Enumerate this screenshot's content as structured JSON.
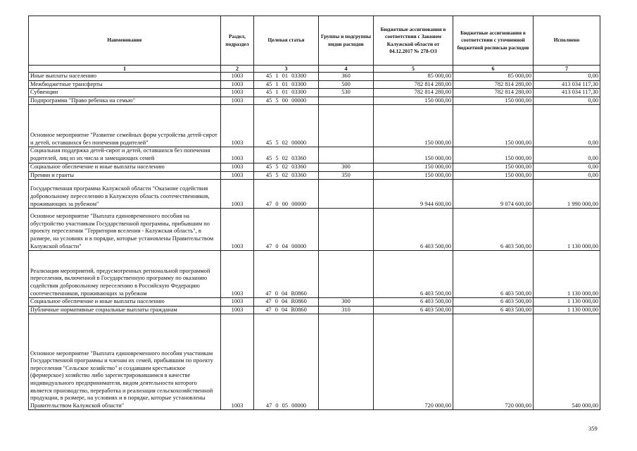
{
  "header": {
    "columns": [
      "Наименование",
      "Раздел, подраздел",
      "Целевая статья",
      "Группы и подгруппы видов расходов",
      "Бюджетные ассигнования в соответствии с Законом Калужской области от 04.12.2017 № 278-ОЗ",
      "Бюджетные ассигнования в соответствии с уточненной бюджетной росписью расходов",
      "Исполнено"
    ],
    "numbers": [
      "1",
      "2",
      "3",
      "4",
      "5",
      "6",
      "7"
    ]
  },
  "rows": [
    {
      "name": "Иные выплаты населению",
      "razdel": "1003",
      "target": "45 1 01 03300",
      "group": "360",
      "law": "85 000,00",
      "refined": "85 000,00",
      "done": "0,00"
    },
    {
      "name": "Межбюджетные трансферты",
      "razdel": "1003",
      "target": "45 1 01 03300",
      "group": "500",
      "law": "782 814 280,00",
      "refined": "782 814 280,00",
      "done": "413 034 117,30"
    },
    {
      "name": "Субвенции",
      "razdel": "1003",
      "target": "45 1 01 03300",
      "group": "530",
      "law": "782 814 280,00",
      "refined": "782 814 280,00",
      "done": "413 034 117,30"
    },
    {
      "name": "Подпрограмма \"Право ребенка на семью\"",
      "razdel": "1003",
      "target": "45 5 00 00000",
      "group": "",
      "law": "150 000,00",
      "refined": "150 000,00",
      "done": "0,00"
    },
    {
      "name": "Основное мероприятие \"Развитие семейных форм устройства детей-сирот и детей, оставшихся без попечения родителей\"",
      "razdel": "1003",
      "target": "45 5 02 00000",
      "group": "",
      "law": "150 000,00",
      "refined": "150 000,00",
      "done": "0,00"
    },
    {
      "name": "Социальная поддержка детей-сирот и детей, оставшихся без попечения родителей, лиц из их числа и замещающих семей",
      "razdel": "1003",
      "target": "45 5 02 03360",
      "group": "",
      "law": "150 000,00",
      "refined": "150 000,00",
      "done": "0,00"
    },
    {
      "name": "Социальное обеспечение и иные выплаты населению",
      "razdel": "1003",
      "target": "45 5 02 03360",
      "group": "300",
      "law": "150 000,00",
      "refined": "150 000,00",
      "done": "0,00"
    },
    {
      "name": "Премии и гранты",
      "razdel": "1003",
      "target": "45 5 02 03360",
      "group": "350",
      "law": "150 000,00",
      "refined": "150 000,00",
      "done": "0,00"
    },
    {
      "name": "Государственная программа Калужской области \"Оказание содействия добровольному переселению в Калужскую область соотечественников, проживающих за рубежом\"",
      "razdel": "1003",
      "target": "47 0 00 00000",
      "group": "",
      "law": "9 944 600,00",
      "refined": "9 074 600,00",
      "done": "1 990 000,00"
    },
    {
      "name": "Основное мероприятие \"Выплата единовременного пособия на обустройство участникам Государственной программы, прибывшим по проекту переселения \"Территория вселения - Калужская область\", в размере, на условиях и в порядке, которые установлены Правительством Калужской области\"",
      "razdel": "1003",
      "target": "47 0 04 00000",
      "group": "",
      "law": "6 403 500,00",
      "refined": "6 403 500,00",
      "done": "1 130 000,00"
    },
    {
      "name": "Реализация мероприятий, предусмотренных региональной программой переселения, включенной в Государственную программу по оказанию содействия добровольному переселению в Российскую Федерацию соотечественников, проживающих за рубежом",
      "razdel": "1003",
      "target": "47 0 04 R0860",
      "group": "",
      "law": "6 403 500,00",
      "refined": "6 403 500,00",
      "done": "1 130 000,00"
    },
    {
      "name": "Социальное обеспечение и иные выплаты населению",
      "razdel": "1003",
      "target": "47 0 04 R0860",
      "group": "300",
      "law": "6 403 500,00",
      "refined": "6 403 500,00",
      "done": "1 130 000,00"
    },
    {
      "name": "Публичные нормативные социальные выплаты гражданам",
      "razdel": "1003",
      "target": "47 0 04 R0860",
      "group": "310",
      "law": "6 403 500,00",
      "refined": "6 403 500,00",
      "done": "1 130 000,00"
    },
    {
      "name": "Основное мероприятие \"Выплата единовременного пособия участникам Государственной программы и членам их семей, прибывшим по проекту переселения \"Сельское хозяйство\" и создавшим крестьянское (фермерское) хозяйство либо зарегистрировавшимся в качестве индивидуального предпринимателя, видом деятельности которого является производство, переработка и реализация сельскохозяйственной продукции, в размере, на условиях и в порядке, которые установлены Правительством Калужской области\"",
      "razdel": "1003",
      "target": "47 0 05 00000",
      "group": "",
      "law": "720 000,00",
      "refined": "720 000,00",
      "done": "540 000,00"
    }
  ],
  "page_number": "359"
}
